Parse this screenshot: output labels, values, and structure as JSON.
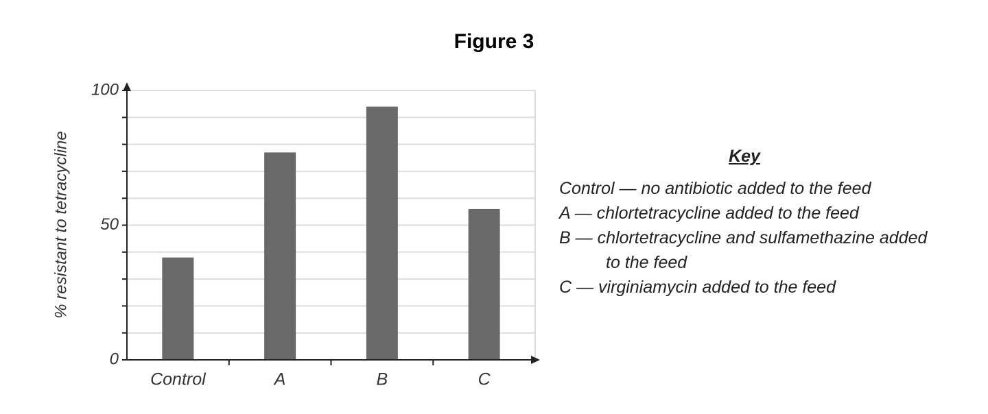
{
  "chart_data": {
    "type": "bar",
    "title": "Figure 3",
    "y_label": "% resistant to tetracycline",
    "categories": [
      "Control",
      "A",
      "B",
      "C"
    ],
    "values": [
      38,
      77,
      94,
      56
    ],
    "color": "#696969",
    "ylim": [
      0,
      100
    ],
    "yticks": [
      0,
      50,
      100
    ],
    "minor_yticks": [
      10,
      20,
      30,
      40,
      60,
      70,
      80,
      90
    ],
    "grid": true,
    "key": {
      "title": "Key",
      "items": [
        "Control — no antibiotic added to the feed",
        "A — chlortetracycline added to the feed",
        "B — chlortetracycline and sulfamethazine added to the feed",
        "C — virginiamycin added to the feed"
      ]
    }
  }
}
